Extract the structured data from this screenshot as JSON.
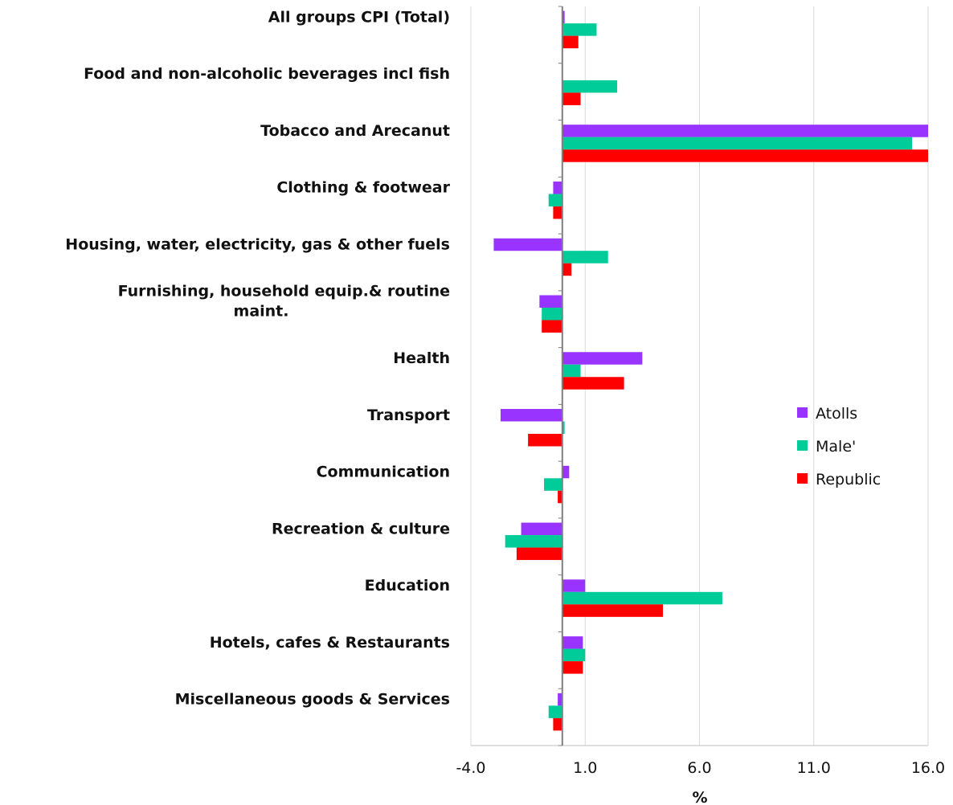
{
  "chart_data": {
    "type": "bar",
    "orientation": "horizontal",
    "xlabel": "%",
    "xlim": [
      -4.0,
      16.0
    ],
    "xticks": [
      "-4.0",
      "1.0",
      "6.0",
      "11.0",
      "16.0"
    ],
    "grid": "vertical",
    "legend_position": "right",
    "categories": [
      [
        "All groups CPI (Total)"
      ],
      [
        "Food and non-alcoholic beverages incl fish"
      ],
      [
        "Tobacco and Arecanut"
      ],
      [
        "Clothing & footwear"
      ],
      [
        "Housing, water, electricity, gas & other fuels"
      ],
      [
        "Furnishing, household equip.& routine",
        "maint."
      ],
      [
        "Health"
      ],
      [
        "Transport"
      ],
      [
        "Communication"
      ],
      [
        "Recreation & culture"
      ],
      [
        "Education"
      ],
      [
        "Hotels, cafes & Restaurants"
      ],
      [
        "Miscellaneous goods & Services"
      ]
    ],
    "series": [
      {
        "name": "Atolls",
        "color": "#9933FF",
        "values": [
          0.1,
          0.0,
          16.0,
          -0.4,
          -3.0,
          -1.0,
          3.5,
          -2.7,
          0.3,
          -1.8,
          1.0,
          0.9,
          -0.2
        ]
      },
      {
        "name": "Male'",
        "color": "#00CC99",
        "values": [
          1.5,
          2.4,
          15.3,
          -0.6,
          2.0,
          -0.9,
          0.8,
          0.1,
          -0.8,
          -2.5,
          7.0,
          1.0,
          -0.6
        ]
      },
      {
        "name": "Republic",
        "color": "#FF0000",
        "values": [
          0.7,
          0.8,
          16.0,
          -0.4,
          0.4,
          -0.9,
          2.7,
          -1.5,
          -0.2,
          -2.0,
          4.4,
          0.9,
          -0.4
        ]
      }
    ]
  }
}
